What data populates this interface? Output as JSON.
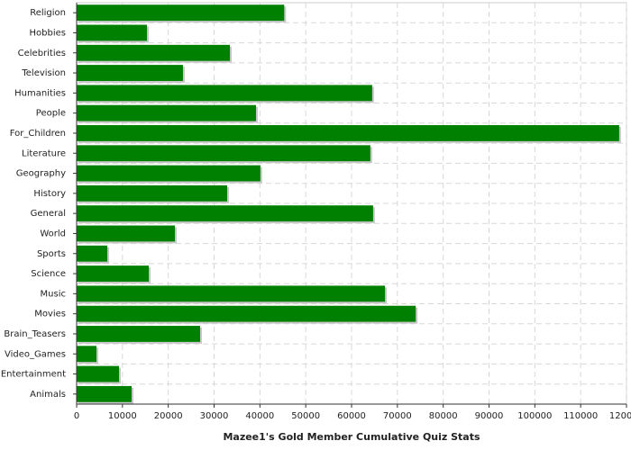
{
  "chart_data": {
    "type": "barh",
    "xlabel": "Mazee1's Gold Member Cumulative Quiz Stats",
    "categories": [
      "Religion",
      "Hobbies",
      "Celebrities",
      "Television",
      "Humanities",
      "People",
      "For_Children",
      "Literature",
      "Geography",
      "History",
      "General",
      "World",
      "Sports",
      "Science",
      "Music",
      "Movies",
      "Brain_Teasers",
      "Video_Games",
      "Entertainment",
      "Animals"
    ],
    "values": [
      45300,
      15350,
      33450,
      23200,
      64500,
      39150,
      118400,
      64100,
      40100,
      32850,
      64700,
      21450,
      6700,
      15750,
      67300,
      74000,
      26950,
      4330,
      9250,
      12000
    ],
    "color": "#008000",
    "xlim": [
      0,
      120000
    ],
    "xticks": [
      0,
      10000,
      20000,
      30000,
      40000,
      50000,
      60000,
      70000,
      80000,
      90000,
      100000,
      110000,
      120000
    ],
    "grid": true
  }
}
